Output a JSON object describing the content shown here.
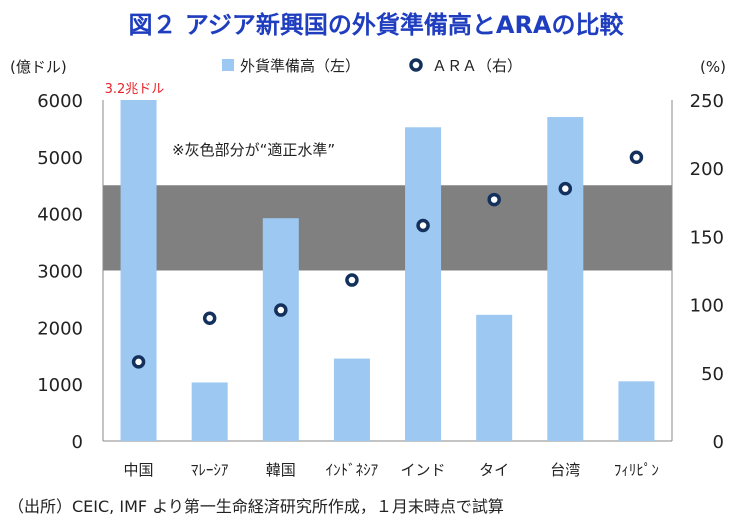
{
  "chart_data": {
    "type": "bar",
    "title": "図２ アジア新興国の外貨準備高とARAの比較",
    "categories": [
      "中国",
      "ﾏﾚｰｼｱ",
      "韓国",
      "ｲﾝﾄﾞﾈｼｱ",
      "インド",
      "タイ",
      "台湾",
      "ﾌｨﾘﾋﾟﾝ"
    ],
    "series": [
      {
        "name": "外貨準備高（左）",
        "type": "bar",
        "axis": "left",
        "color": "#9cc8f2",
        "values": [
          6000,
          1030,
          3920,
          1450,
          5520,
          2220,
          5700,
          1050
        ]
      },
      {
        "name": "ＡＲＡ（右）",
        "type": "scatter",
        "axis": "right",
        "color": "#13315c",
        "values": [
          58,
          90,
          96,
          118,
          158,
          177,
          185,
          208
        ]
      }
    ],
    "ylabel_left": "(億ドル)",
    "ylabel_right": "(%)",
    "ylim_left": [
      0,
      6000
    ],
    "ylim_right": [
      0,
      250
    ],
    "yticks_left": [
      0,
      1000,
      2000,
      3000,
      4000,
      5000,
      6000
    ],
    "yticks_right": [
      0,
      50,
      100,
      150,
      200,
      250
    ],
    "band": {
      "label": "※灰色部分が“適正水準”",
      "from": 3000,
      "to": 4500,
      "color": "#808080"
    },
    "annotation": "3.2兆ドル",
    "legend_position": "top",
    "grid": false
  },
  "source": "（出所）CEIC, IMF より第一生命経済研究所作成，１月末時点で試算"
}
